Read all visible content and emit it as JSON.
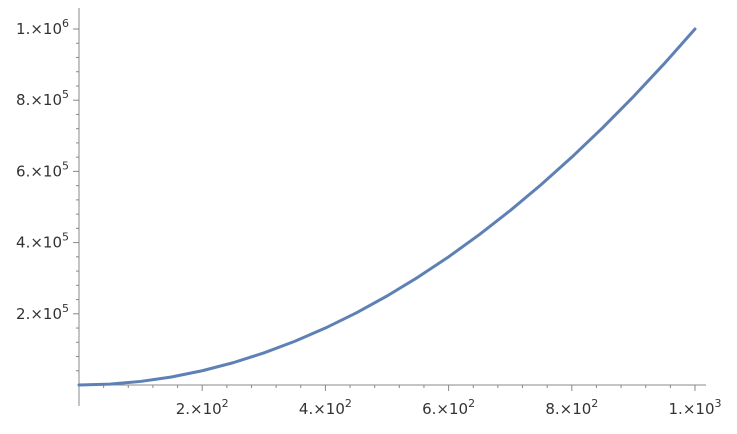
{
  "chart_data": {
    "type": "line",
    "title": "",
    "xlabel": "",
    "ylabel": "",
    "xlim": [
      0,
      1000
    ],
    "ylim": [
      0,
      1000000
    ],
    "grid": false,
    "legend": "none",
    "x_ticks": [
      {
        "value": 200,
        "mantissa": "2.",
        "exponent": "2"
      },
      {
        "value": 400,
        "mantissa": "4.",
        "exponent": "2"
      },
      {
        "value": 600,
        "mantissa": "6.",
        "exponent": "2"
      },
      {
        "value": 800,
        "mantissa": "8.",
        "exponent": "2"
      },
      {
        "value": 1000,
        "mantissa": "1.",
        "exponent": "3"
      }
    ],
    "y_ticks": [
      {
        "value": 200000,
        "mantissa": "2.",
        "exponent": "5"
      },
      {
        "value": 400000,
        "mantissa": "4.",
        "exponent": "5"
      },
      {
        "value": 600000,
        "mantissa": "6.",
        "exponent": "5"
      },
      {
        "value": 800000,
        "mantissa": "8.",
        "exponent": "5"
      },
      {
        "value": 1000000,
        "mantissa": "1.",
        "exponent": "6"
      }
    ],
    "times_symbol": "×",
    "base": "10",
    "series": [
      {
        "color": "#5e81b5",
        "x": [
          0,
          50,
          100,
          150,
          200,
          250,
          300,
          350,
          400,
          450,
          500,
          550,
          600,
          650,
          700,
          750,
          800,
          850,
          900,
          950,
          1000
        ],
        "y": [
          0,
          2500,
          10000,
          22500,
          40000,
          62500,
          90000,
          122500,
          160000,
          202500,
          250000,
          302500,
          360000,
          422500,
          490000,
          562500,
          640000,
          722500,
          810000,
          902500,
          1000000
        ]
      }
    ]
  }
}
